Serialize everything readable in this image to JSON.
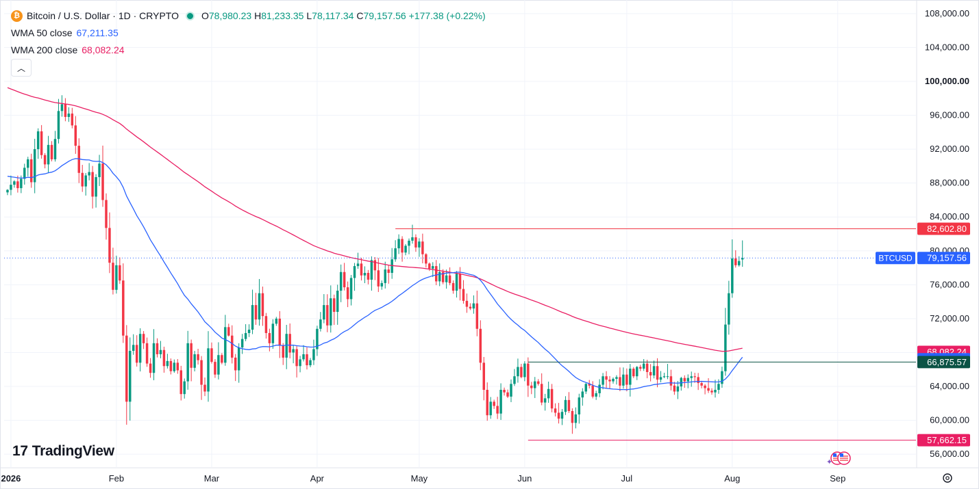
{
  "header": {
    "symbol_title": "Bitcoin / U.S. Dollar · 1D · CRYPTO",
    "ohlc": [
      {
        "key": "O",
        "value": "78,980.23"
      },
      {
        "key": "H",
        "value": "81,233.35"
      },
      {
        "key": "L",
        "value": "78,117.34"
      },
      {
        "key": "C",
        "value": "79,157.56"
      }
    ],
    "change": "+177.38 (+0.22%)",
    "indicators": [
      {
        "label": "WMA 50 close",
        "value": "67,211.35",
        "color": "#2962ff"
      },
      {
        "label": "WMA 200 close",
        "value": "68,082.24",
        "color": "#e91e63"
      }
    ]
  },
  "icons": {
    "symbol": "bitcoin-icon",
    "collapse": "chevron-up-icon",
    "settings": "gear-icon",
    "events": "us-flag-events-icon"
  },
  "logo": {
    "text": "TradingView",
    "mark": "17"
  },
  "colors": {
    "up": "#089981",
    "down": "#f23645",
    "wma50": "#2962ff",
    "wma200": "#e91e63",
    "grid": "#f0f3fa",
    "text": "#131722"
  },
  "chart_data": {
    "type": "candlestick",
    "title": "Bitcoin / U.S. Dollar · 1D · CRYPTO",
    "yaxis_ticks": [
      "56,000.00",
      "60,000.00",
      "64,000.00",
      "68,000.00",
      "72,000.00",
      "76,000.00",
      "80,000.00",
      "84,000.00",
      "88,000.00",
      "92,000.00",
      "96,000.00",
      "100,000.00",
      "104,000.00",
      "108,000.00"
    ],
    "ylim": [
      54400,
      109600
    ],
    "xaxis_ticks": [
      {
        "label": "2026",
        "date": "2026-01-01"
      },
      {
        "label": "Feb",
        "date": "2026-02-01"
      },
      {
        "label": "Mar",
        "date": "2026-03-01"
      },
      {
        "label": "Apr",
        "date": "2026-04-01"
      },
      {
        "label": "May",
        "date": "2026-05-01"
      },
      {
        "label": "Jun",
        "date": "2026-06-01"
      },
      {
        "label": "Jul",
        "date": "2026-07-01"
      },
      {
        "label": "Aug",
        "date": "2026-08-01"
      },
      {
        "label": "Sep",
        "date": "2026-09-01"
      }
    ],
    "xlim": [
      "2025-12-30",
      "2026-09-24"
    ],
    "candles_start": "2025-12-31",
    "ohlc_closes": [
      87200,
      87800,
      88200,
      87400,
      88500,
      89800,
      90800,
      88100,
      92000,
      94100,
      91300,
      90200,
      92500,
      90800,
      93200,
      96500,
      97300,
      95800,
      96200,
      94800,
      92400,
      89200,
      87600,
      88900,
      89300,
      86400,
      88700,
      90300,
      86000,
      82700,
      78600,
      75400,
      78300,
      76500,
      70000,
      62200,
      68200,
      68900,
      66800,
      70200,
      69100,
      66700,
      65600,
      69100,
      67800,
      68300,
      66400,
      67000,
      65800,
      66800,
      65900,
      63100,
      64600,
      69100,
      66200,
      67800,
      67100,
      64200,
      63400,
      68500,
      66900,
      65400,
      67700,
      66800,
      71000,
      70000,
      67400,
      65900,
      68600,
      69600,
      70300,
      70700,
      73600,
      71900,
      75000,
      72300,
      70300,
      69100,
      71400,
      72000,
      68800,
      67400,
      70200,
      68000,
      68400,
      66400,
      67200,
      67800,
      66500,
      67100,
      68400,
      70800,
      71900,
      73600,
      71200,
      74400,
      72800,
      75300,
      77500,
      75700,
      74300,
      76800,
      78200,
      78500,
      77100,
      77400,
      76600,
      78900,
      77700,
      75800,
      76200,
      77800,
      77400,
      79000,
      80300,
      81400,
      79800,
      80600,
      81200,
      81600,
      80400,
      81100,
      79600,
      78500,
      77900,
      78200,
      76400,
      77500,
      76300,
      77100,
      76200,
      75300,
      77300,
      75500,
      74100,
      73400,
      73200,
      73800,
      70800,
      66800,
      63600,
      60600,
      62200,
      61700,
      60800,
      63600,
      63300,
      62800,
      64300,
      65200,
      66300,
      65100,
      66700,
      64100,
      63800,
      64600,
      64300,
      62100,
      62600,
      63700,
      61400,
      60900,
      60200,
      61000,
      62400,
      61100,
      59700,
      60700,
      62700,
      63400,
      64300,
      64100,
      62800,
      63200,
      64200,
      65200,
      64800,
      64600,
      64900,
      65100,
      64100,
      65400,
      64200,
      66100,
      65200,
      66300,
      66100,
      66700,
      65700,
      65300,
      66400,
      64800,
      65100,
      65200,
      65200,
      64100,
      63400,
      64000,
      65000,
      64600,
      65000,
      65200,
      65100,
      64400,
      64100,
      63800,
      63500,
      63300,
      63600,
      64300,
      65800,
      71300,
      75000,
      79100,
      78300,
      78800,
      79158
    ],
    "last_close_value": 79157.56,
    "series": [
      {
        "name": "BTCUSD",
        "kind": "candles"
      },
      {
        "name": "WMA 50 close",
        "kind": "line",
        "last": 67211.35,
        "color": "#2962ff"
      },
      {
        "name": "WMA 200 close",
        "kind": "line",
        "last": 68082.24,
        "color": "#e91e63"
      }
    ],
    "annotations": [
      {
        "type": "hline",
        "value": 82602.8,
        "label": "82,602.80",
        "from": "2026-04-24",
        "color": "#f23645"
      },
      {
        "type": "hline",
        "value": 66875.57,
        "label": "66,875.57",
        "from": "2026-06-02",
        "color": "#0b5345"
      },
      {
        "type": "hline",
        "value": 57662.15,
        "label": "57,662.15",
        "from": "2026-06-02",
        "color": "#e91e63"
      }
    ],
    "price_labels": [
      {
        "text": "BTCUSD",
        "value": 79157.56,
        "label": "79,157.56",
        "color": "#2962ff",
        "with_symbol": true
      },
      {
        "value": 82602.8,
        "label": "82,602.80",
        "color": "#f23645"
      },
      {
        "value": 68082.24,
        "label": "68,082.24",
        "color": "#e91e63"
      },
      {
        "value": 67211.35,
        "label": "67,211.35",
        "color": "#2962ff"
      },
      {
        "value": 66875.57,
        "label": "66,875.57",
        "color": "#0b5345"
      },
      {
        "value": 57662.15,
        "label": "57,662.15",
        "color": "#e91e63"
      }
    ]
  }
}
